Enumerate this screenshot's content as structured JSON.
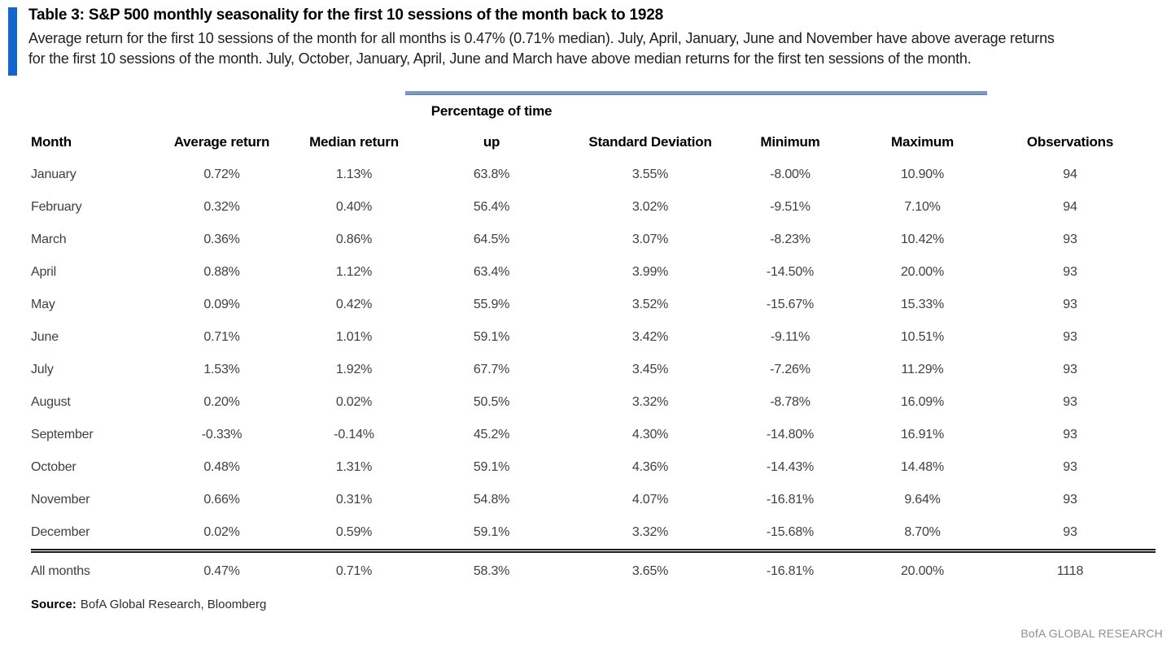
{
  "colors": {
    "accent_bar": "#1565d0",
    "header_divider": "#7e99c5",
    "cell_text": "#3f3f3f",
    "brand_text": "#8f8f8f"
  },
  "header": {
    "title": "Table 3: S&P 500 monthly seasonality for the first 10 sessions of the month back to 1928",
    "subtitle_lines": [
      "Average return for the first 10 sessions of the month for all months is 0.47% (0.71% median). July, April, January, June and November have above average returns",
      "for the first 10 sessions of the month. July, October, January, April, June and March have above median returns for the first ten sessions of the month."
    ]
  },
  "table": {
    "group_header": "Percentage of time",
    "columns": [
      "Month",
      "Average return",
      "Median return",
      "up",
      "Standard Deviation",
      "Minimum",
      "Maximum",
      "Observations"
    ],
    "rows": [
      [
        "January",
        "0.72%",
        "1.13%",
        "63.8%",
        "3.55%",
        "-8.00%",
        "10.90%",
        "94"
      ],
      [
        "February",
        "0.32%",
        "0.40%",
        "56.4%",
        "3.02%",
        "-9.51%",
        "7.10%",
        "94"
      ],
      [
        "March",
        "0.36%",
        "0.86%",
        "64.5%",
        "3.07%",
        "-8.23%",
        "10.42%",
        "93"
      ],
      [
        "April",
        "0.88%",
        "1.12%",
        "63.4%",
        "3.99%",
        "-14.50%",
        "20.00%",
        "93"
      ],
      [
        "May",
        "0.09%",
        "0.42%",
        "55.9%",
        "3.52%",
        "-15.67%",
        "15.33%",
        "93"
      ],
      [
        "June",
        "0.71%",
        "1.01%",
        "59.1%",
        "3.42%",
        "-9.11%",
        "10.51%",
        "93"
      ],
      [
        "July",
        "1.53%",
        "1.92%",
        "67.7%",
        "3.45%",
        "-7.26%",
        "11.29%",
        "93"
      ],
      [
        "August",
        "0.20%",
        "0.02%",
        "50.5%",
        "3.32%",
        "-8.78%",
        "16.09%",
        "93"
      ],
      [
        "September",
        "-0.33%",
        "-0.14%",
        "45.2%",
        "4.30%",
        "-14.80%",
        "16.91%",
        "93"
      ],
      [
        "October",
        "0.48%",
        "1.31%",
        "59.1%",
        "4.36%",
        "-14.43%",
        "14.48%",
        "93"
      ],
      [
        "November",
        "0.66%",
        "0.31%",
        "54.8%",
        "4.07%",
        "-16.81%",
        "9.64%",
        "93"
      ],
      [
        "December",
        "0.02%",
        "0.59%",
        "59.1%",
        "3.32%",
        "-15.68%",
        "8.70%",
        "93"
      ]
    ],
    "total_row": [
      "All months",
      "0.47%",
      "0.71%",
      "58.3%",
      "3.65%",
      "-16.81%",
      "20.00%",
      "1118"
    ]
  },
  "footer": {
    "source_label": "Source:",
    "source_text": "BofA Global Research, Bloomberg",
    "brand": "BofA GLOBAL RESEARCH"
  }
}
